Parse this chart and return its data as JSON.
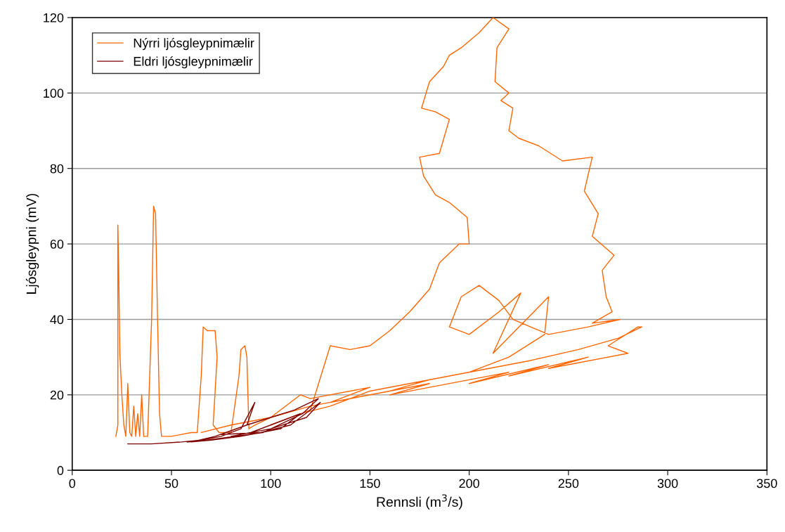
{
  "chart_data": {
    "type": "line",
    "xlabel": "Rennsli (m$^{3}$/s)",
    "ylabel": "Ljósgleypni (mV)",
    "xlim": [
      0,
      350
    ],
    "xticks": [
      0,
      50,
      100,
      150,
      200,
      250,
      300,
      350
    ],
    "ylim": [
      0,
      120
    ],
    "yticks": [
      0,
      20,
      40,
      60,
      80,
      100,
      120
    ],
    "grid": "y",
    "legend": "top left",
    "marker": "none",
    "line_style": "solid",
    "series": [
      {
        "name": "Nýrri ljósgleypnimælir",
        "color": "#ff6600",
        "x": [
          22,
          23,
          23,
          23.5,
          24,
          25,
          26,
          27,
          28,
          29,
          30,
          31,
          32,
          33,
          34,
          35,
          36,
          38,
          40,
          41,
          42,
          43,
          44,
          45,
          50,
          55,
          60,
          63,
          65,
          66,
          68,
          70,
          72,
          73,
          71,
          74,
          80,
          84,
          85,
          87,
          88,
          89,
          92,
          100,
          105,
          110,
          115,
          120,
          150,
          130,
          160,
          140,
          180,
          160,
          200,
          180,
          220,
          200,
          240,
          220,
          260,
          240,
          280,
          270,
          285,
          287,
          275,
          255,
          230,
          210,
          190,
          170,
          150,
          130,
          115,
          100,
          120,
          130,
          140,
          150,
          160,
          170,
          180,
          185,
          195,
          200,
          199,
          190,
          183,
          177,
          175,
          185,
          190,
          183,
          176,
          180,
          187,
          190,
          196,
          205,
          212,
          220,
          214,
          213,
          220,
          216,
          222,
          220,
          225,
          235,
          247,
          262,
          258,
          265,
          262,
          273,
          267,
          269,
          272,
          262,
          276,
          260,
          240,
          222,
          215,
          205,
          196,
          190,
          200,
          215,
          226,
          212,
          240,
          238,
          220,
          200,
          180,
          160,
          140,
          120,
          100,
          80,
          65
        ],
        "values": [
          9,
          12,
          65,
          50,
          31,
          20,
          12,
          9,
          23,
          10,
          9,
          17,
          9,
          15,
          9,
          20,
          9,
          9,
          40,
          70,
          68,
          40,
          15,
          9,
          9,
          9.5,
          10,
          10,
          25,
          38,
          37,
          37,
          37,
          30,
          12,
          10,
          10,
          25,
          32,
          33,
          30,
          11,
          12,
          14,
          16,
          18,
          20,
          19,
          22,
          18,
          21,
          19,
          23,
          20,
          24,
          22,
          26,
          23,
          28,
          25,
          30,
          27,
          31,
          33,
          38,
          38,
          35,
          32,
          29,
          27,
          25,
          23,
          21,
          17,
          15,
          12,
          16,
          33,
          32,
          33,
          37,
          42,
          48,
          55,
          60,
          60,
          67,
          71,
          73,
          78,
          83,
          84,
          93,
          95,
          96,
          103,
          107,
          110,
          112,
          116,
          120,
          117,
          112,
          103,
          100,
          98,
          96,
          90,
          88,
          86,
          82,
          83,
          74,
          68,
          62,
          57,
          53,
          46,
          42,
          39,
          40,
          38,
          36,
          40,
          45,
          49,
          46,
          38,
          36,
          42,
          47,
          31,
          46,
          36,
          30,
          26,
          24,
          21,
          19,
          17,
          14,
          12,
          10
        ]
      },
      {
        "name": "Eldri ljósgleypnimælir",
        "color": "#800000",
        "x": [
          28,
          40,
          55,
          65,
          75,
          85,
          92,
          88,
          75,
          95,
          110,
          125,
          118,
          100,
          80,
          90,
          115,
          105,
          95,
          85,
          70,
          60,
          72,
          88,
          100,
          112,
          124,
          116,
          104,
          96,
          82,
          68,
          58
        ],
        "values": [
          7,
          7,
          7.5,
          8,
          9,
          11,
          18,
          12,
          9.5,
          10,
          12,
          18,
          14,
          11,
          9,
          10,
          15,
          11,
          10,
          9,
          8,
          7.5,
          9,
          12,
          14,
          16,
          19,
          15,
          12,
          10,
          9,
          8,
          7.5
        ]
      }
    ]
  }
}
